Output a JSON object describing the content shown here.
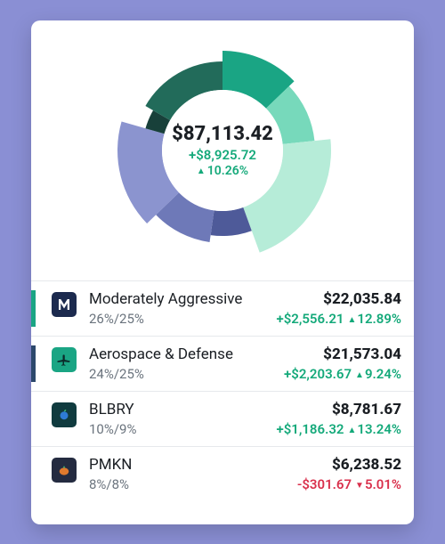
{
  "theme": {
    "page_bg": "#8a8fd4",
    "card_bg": "#ffffff",
    "divider": "#e6e9ec",
    "text_primary": "#1b1f24",
    "text_muted": "#6a737d",
    "pos": "#14a97a",
    "neg": "#d9304c"
  },
  "portfolio": {
    "total_display": "$87,113.42",
    "change_abs": "+$8,925.72",
    "change_pct": "10.26%",
    "change_direction": "up"
  },
  "donut": {
    "size": 248,
    "inner_radius": 68,
    "center_bg": "#ffffff",
    "slices": [
      {
        "color": "#1aa584",
        "start": 0,
        "span": 46,
        "radius": 112
      },
      {
        "color": "#77d9bb",
        "start": 46,
        "span": 38,
        "radius": 104
      },
      {
        "color": "#b6ecd8",
        "start": 84,
        "span": 76,
        "radius": 122
      },
      {
        "color": "#4e5a99",
        "start": 160,
        "span": 28,
        "radius": 96
      },
      {
        "color": "#6e79b8",
        "start": 188,
        "span": 38,
        "radius": 104
      },
      {
        "color": "#8b94cf",
        "start": 226,
        "span": 60,
        "radius": 118
      },
      {
        "color": "#18403a",
        "start": 286,
        "span": 14,
        "radius": 90
      },
      {
        "color": "#226b5a",
        "start": 300,
        "span": 60,
        "radius": 100
      }
    ]
  },
  "holdings": [
    {
      "accent": "#1aa584",
      "icon_bg": "#1c2a4e",
      "icon": "M",
      "name": "Moderately Aggressive",
      "allocation": "26%/25%",
      "value": "$22,035.84",
      "change_abs": "+$2,556.21",
      "change_pct": "12.89%",
      "direction": "up"
    },
    {
      "accent": "#2c486b",
      "icon_bg": "#1aa584",
      "icon": "plane",
      "name": "Aerospace & Defense",
      "allocation": "24%/25%",
      "value": "$21,573.04",
      "change_abs": "+$2,203.67",
      "change_pct": "9.24%",
      "direction": "up"
    },
    {
      "accent": "#ffffff",
      "icon_bg": "#103b3f",
      "icon": "berry",
      "name": "BLBRY",
      "allocation": "10%/9%",
      "value": "$8,781.67",
      "change_abs": "+$1,186.32",
      "change_pct": "13.24%",
      "direction": "up"
    },
    {
      "accent": "#ffffff",
      "icon_bg": "#242b40",
      "icon": "pumpkin",
      "name": "PMKN",
      "allocation": "8%/8%",
      "value": "$6,238.52",
      "change_abs": "-$301.67",
      "change_pct": "5.01%",
      "direction": "down"
    }
  ]
}
